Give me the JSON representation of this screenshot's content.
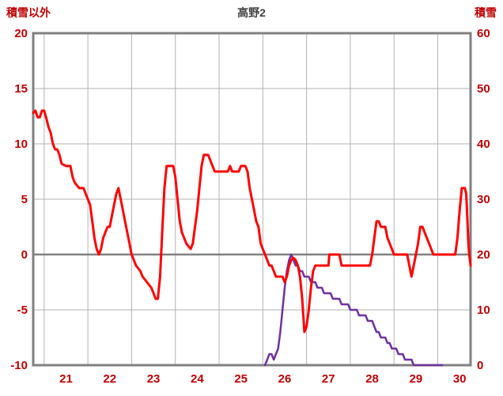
{
  "header": {
    "left_axis_title": "積雪以外",
    "title": "高野2",
    "right_axis_title": "積雪"
  },
  "colors": {
    "temperature_line": "#ff0000",
    "snow_line": "#7030a0",
    "grid": "#b3b3b3",
    "axis_border": "#808080",
    "zero_line": "#808080",
    "tick_label": "#c00000",
    "title": "#404040",
    "background": "#ffffff"
  },
  "chart_data": {
    "type": "line",
    "title": "高野2",
    "grid": true,
    "legend": "none",
    "left_axis": {
      "label": "積雪以外",
      "min": -10,
      "max": 20,
      "ticks": [
        20,
        15,
        10,
        5,
        0,
        -5,
        -10
      ]
    },
    "right_axis": {
      "label": "積雪",
      "min": 0,
      "max": 60,
      "ticks": [
        60,
        50,
        40,
        30,
        20,
        10,
        0
      ]
    },
    "x_axis": {
      "min": 20.25,
      "max": 30.25,
      "tick_values": [
        21,
        22,
        23,
        24,
        25,
        26,
        27,
        28,
        29,
        30
      ],
      "gridlines": [
        20.5,
        21.5,
        22.5,
        23.5,
        24.5,
        25.5,
        26.5,
        27.5,
        28.5,
        29.5
      ]
    },
    "series": [
      {
        "name": "積雪",
        "data_name": "snow-depth-line",
        "axis": "right",
        "color": "#7030a0",
        "width": 2.5,
        "points": [
          [
            25.55,
            0
          ],
          [
            25.6,
            1
          ],
          [
            25.65,
            2
          ],
          [
            25.7,
            2
          ],
          [
            25.75,
            1
          ],
          [
            25.8,
            2
          ],
          [
            25.85,
            3
          ],
          [
            25.9,
            6
          ],
          [
            25.95,
            10
          ],
          [
            26.0,
            14
          ],
          [
            26.05,
            17
          ],
          [
            26.1,
            19
          ],
          [
            26.15,
            20
          ],
          [
            26.2,
            19
          ],
          [
            26.25,
            18
          ],
          [
            26.3,
            18
          ],
          [
            26.35,
            17
          ],
          [
            26.4,
            17
          ],
          [
            26.45,
            16
          ],
          [
            26.55,
            16
          ],
          [
            26.6,
            15
          ],
          [
            26.7,
            15
          ],
          [
            26.75,
            14
          ],
          [
            26.85,
            14
          ],
          [
            26.9,
            13
          ],
          [
            27.05,
            13
          ],
          [
            27.1,
            12
          ],
          [
            27.25,
            12
          ],
          [
            27.3,
            11
          ],
          [
            27.45,
            11
          ],
          [
            27.5,
            10
          ],
          [
            27.65,
            10
          ],
          [
            27.7,
            9
          ],
          [
            27.85,
            9
          ],
          [
            27.9,
            8
          ],
          [
            28.0,
            8
          ],
          [
            28.05,
            7
          ],
          [
            28.1,
            6
          ],
          [
            28.15,
            6
          ],
          [
            28.2,
            5
          ],
          [
            28.3,
            5
          ],
          [
            28.35,
            4
          ],
          [
            28.4,
            4
          ],
          [
            28.45,
            3
          ],
          [
            28.55,
            3
          ],
          [
            28.6,
            2
          ],
          [
            28.7,
            2
          ],
          [
            28.75,
            1
          ],
          [
            28.9,
            1
          ],
          [
            28.95,
            0
          ],
          [
            29.6,
            0
          ]
        ]
      },
      {
        "name": "積雪以外",
        "data_name": "temperature-line",
        "axis": "left",
        "color": "#ff0000",
        "width": 3,
        "points": [
          [
            20.25,
            12.8
          ],
          [
            20.3,
            13
          ],
          [
            20.35,
            12.4
          ],
          [
            20.4,
            12.4
          ],
          [
            20.45,
            13
          ],
          [
            20.5,
            13
          ],
          [
            20.55,
            12.3
          ],
          [
            20.6,
            11.5
          ],
          [
            20.65,
            11
          ],
          [
            20.7,
            10
          ],
          [
            20.75,
            9.5
          ],
          [
            20.8,
            9.5
          ],
          [
            20.85,
            9
          ],
          [
            20.9,
            8.2
          ],
          [
            21.0,
            8
          ],
          [
            21.1,
            8
          ],
          [
            21.15,
            7
          ],
          [
            21.2,
            6.5
          ],
          [
            21.3,
            6
          ],
          [
            21.4,
            6
          ],
          [
            21.5,
            5
          ],
          [
            21.55,
            4.5
          ],
          [
            21.6,
            3
          ],
          [
            21.65,
            1.5
          ],
          [
            21.7,
            0.5
          ],
          [
            21.75,
            0
          ],
          [
            21.8,
            0.5
          ],
          [
            21.85,
            1.5
          ],
          [
            21.9,
            2
          ],
          [
            21.95,
            2.5
          ],
          [
            22.0,
            2.5
          ],
          [
            22.05,
            3.5
          ],
          [
            22.1,
            4.5
          ],
          [
            22.15,
            5.5
          ],
          [
            22.2,
            6
          ],
          [
            22.25,
            5
          ],
          [
            22.3,
            4
          ],
          [
            22.35,
            3
          ],
          [
            22.4,
            2
          ],
          [
            22.45,
            1
          ],
          [
            22.5,
            0
          ],
          [
            22.55,
            -0.5
          ],
          [
            22.6,
            -1
          ],
          [
            22.7,
            -1.5
          ],
          [
            22.75,
            -2
          ],
          [
            22.85,
            -2.5
          ],
          [
            22.95,
            -3
          ],
          [
            23.0,
            -3.5
          ],
          [
            23.05,
            -4
          ],
          [
            23.1,
            -4
          ],
          [
            23.15,
            -2
          ],
          [
            23.2,
            2
          ],
          [
            23.25,
            6
          ],
          [
            23.3,
            8
          ],
          [
            23.45,
            8
          ],
          [
            23.5,
            7
          ],
          [
            23.55,
            5
          ],
          [
            23.6,
            3
          ],
          [
            23.65,
            2
          ],
          [
            23.7,
            1.5
          ],
          [
            23.75,
            1
          ],
          [
            23.85,
            0.5
          ],
          [
            23.9,
            1
          ],
          [
            23.95,
            2.5
          ],
          [
            24.0,
            4
          ],
          [
            24.05,
            6
          ],
          [
            24.1,
            8
          ],
          [
            24.15,
            9
          ],
          [
            24.25,
            9
          ],
          [
            24.3,
            8.5
          ],
          [
            24.35,
            8
          ],
          [
            24.4,
            7.5
          ],
          [
            24.7,
            7.5
          ],
          [
            24.75,
            8
          ],
          [
            24.8,
            7.5
          ],
          [
            24.95,
            7.5
          ],
          [
            25.0,
            8
          ],
          [
            25.1,
            8
          ],
          [
            25.15,
            7.5
          ],
          [
            25.2,
            6
          ],
          [
            25.25,
            5
          ],
          [
            25.3,
            4
          ],
          [
            25.35,
            3
          ],
          [
            25.4,
            2.5
          ],
          [
            25.45,
            1
          ],
          [
            25.5,
            0.5
          ],
          [
            25.55,
            0
          ],
          [
            25.6,
            -0.5
          ],
          [
            25.65,
            -1
          ],
          [
            25.7,
            -1
          ],
          [
            25.75,
            -1.5
          ],
          [
            25.8,
            -2
          ],
          [
            25.95,
            -2
          ],
          [
            26.0,
            -2.5
          ],
          [
            26.05,
            -2
          ],
          [
            26.1,
            -1
          ],
          [
            26.15,
            -0.5
          ],
          [
            26.2,
            -0.3
          ],
          [
            26.25,
            -0.5
          ],
          [
            26.3,
            -1
          ],
          [
            26.35,
            -2
          ],
          [
            26.4,
            -4
          ],
          [
            26.45,
            -7
          ],
          [
            26.5,
            -6.5
          ],
          [
            26.55,
            -5
          ],
          [
            26.6,
            -3
          ],
          [
            26.65,
            -1.5
          ],
          [
            26.7,
            -1
          ],
          [
            27.0,
            -1
          ],
          [
            27.02,
            0
          ],
          [
            27.25,
            0
          ],
          [
            27.3,
            -1
          ],
          [
            27.95,
            -1
          ],
          [
            28.0,
            0
          ],
          [
            28.05,
            1.5
          ],
          [
            28.1,
            3
          ],
          [
            28.15,
            3
          ],
          [
            28.2,
            2.5
          ],
          [
            28.3,
            2.5
          ],
          [
            28.35,
            1.5
          ],
          [
            28.4,
            1
          ],
          [
            28.45,
            0.5
          ],
          [
            28.5,
            0
          ],
          [
            28.8,
            0
          ],
          [
            28.85,
            -1
          ],
          [
            28.9,
            -2
          ],
          [
            28.95,
            -1
          ],
          [
            29.0,
            0
          ],
          [
            29.05,
            1
          ],
          [
            29.1,
            2.5
          ],
          [
            29.15,
            2.5
          ],
          [
            29.2,
            2
          ],
          [
            29.25,
            1.5
          ],
          [
            29.3,
            1
          ],
          [
            29.35,
            0.5
          ],
          [
            29.4,
            0
          ],
          [
            29.9,
            0
          ],
          [
            29.95,
            1.5
          ],
          [
            30.0,
            4
          ],
          [
            30.05,
            6
          ],
          [
            30.12,
            6
          ],
          [
            30.15,
            5.5
          ],
          [
            30.18,
            3
          ],
          [
            30.2,
            1
          ],
          [
            30.22,
            0
          ],
          [
            30.25,
            -1
          ]
        ]
      }
    ]
  }
}
